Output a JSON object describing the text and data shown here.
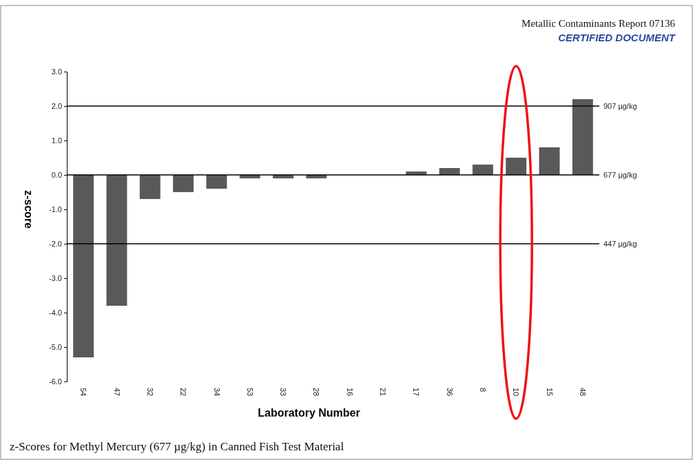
{
  "chart_data": {
    "type": "bar",
    "title": "Metallic Contaminants Report 07136",
    "subtitle": "CERTIFIED DOCUMENT",
    "xlabel": "Laboratory Number",
    "ylabel": "z-score",
    "categories": [
      "54",
      "47",
      "32",
      "22",
      "34",
      "53",
      "33",
      "28",
      "16",
      "21",
      "17",
      "36",
      "8",
      "10",
      "15",
      "48"
    ],
    "values": [
      -5.3,
      -3.8,
      -0.7,
      -0.5,
      -0.4,
      -0.1,
      -0.1,
      -0.1,
      0,
      0,
      0.1,
      0.2,
      0.3,
      0.5,
      0.8,
      2.2
    ],
    "color": "#595959",
    "ylim": [
      -6,
      3
    ],
    "yticks": [
      {
        "value": 3,
        "label": "3.0"
      },
      {
        "value": 2,
        "label": "2.0"
      },
      {
        "value": 1,
        "label": "1.0"
      },
      {
        "value": 0,
        "label": "0.0"
      },
      {
        "value": -1,
        "label": "-1.0"
      },
      {
        "value": -2,
        "label": "-2.0"
      },
      {
        "value": -3,
        "label": "-3.0"
      },
      {
        "value": -4,
        "label": "-4.0"
      },
      {
        "value": -5,
        "label": "-5.0"
      },
      {
        "value": -6,
        "label": "-6.0"
      }
    ],
    "ref_lines": [
      {
        "axis": "y",
        "value": 2,
        "label": "907 µg/kg",
        "color": "#000000"
      },
      {
        "axis": "y",
        "value": 0,
        "label": "677 µg/kg",
        "color": "#000000"
      },
      {
        "axis": "y",
        "value": -2,
        "label": "447 µg/kg",
        "color": "#000000"
      }
    ],
    "annotations": [
      "z-Scores for Methyl Mercury (677 µg/kg) in Canned Fish Test Material"
    ],
    "grid": false
  }
}
